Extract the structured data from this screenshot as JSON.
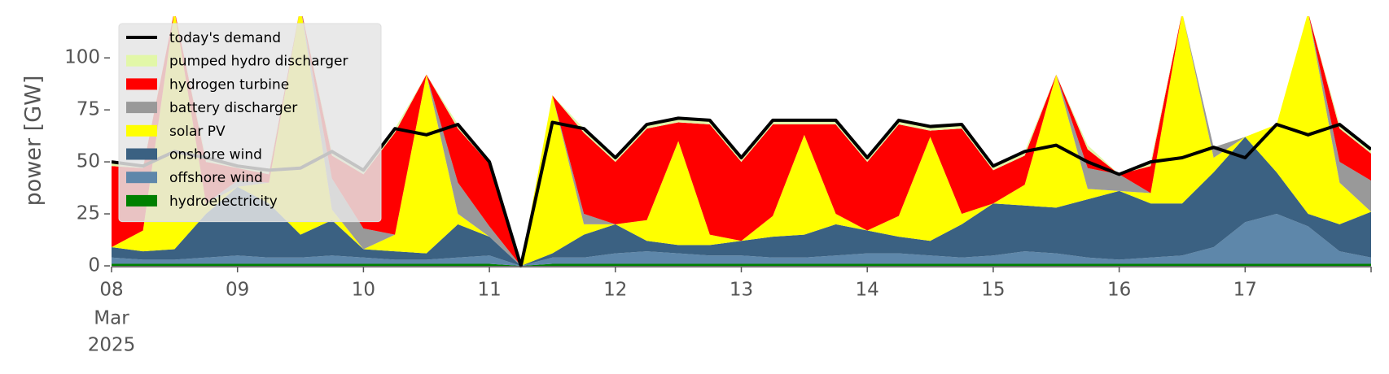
{
  "chart_data": {
    "type": "area",
    "stacked": true,
    "y_label": "power [GW]",
    "x": [
      "2025-03-08T00:00",
      "2025-03-08T06:00",
      "2025-03-08T12:00",
      "2025-03-08T18:00",
      "2025-03-09T00:00",
      "2025-03-09T06:00",
      "2025-03-09T12:00",
      "2025-03-09T18:00",
      "2025-03-10T00:00",
      "2025-03-10T06:00",
      "2025-03-10T12:00",
      "2025-03-10T18:00",
      "2025-03-11T00:00",
      "2025-03-11T06:00",
      "2025-03-11T12:00",
      "2025-03-11T18:00",
      "2025-03-12T00:00",
      "2025-03-12T06:00",
      "2025-03-12T12:00",
      "2025-03-12T18:00",
      "2025-03-13T00:00",
      "2025-03-13T06:00",
      "2025-03-13T12:00",
      "2025-03-13T18:00",
      "2025-03-14T00:00",
      "2025-03-14T06:00",
      "2025-03-14T12:00",
      "2025-03-14T18:00",
      "2025-03-15T00:00",
      "2025-03-15T06:00",
      "2025-03-15T12:00",
      "2025-03-15T18:00",
      "2025-03-16T00:00",
      "2025-03-16T06:00",
      "2025-03-16T12:00",
      "2025-03-16T18:00",
      "2025-03-17T00:00",
      "2025-03-17T06:00",
      "2025-03-17T12:00",
      "2025-03-17T18:00",
      "2025-03-18T00:00"
    ],
    "xlim": [
      "2025-03-08T00:00",
      "2025-03-18T00:00"
    ],
    "xticks": [
      {
        "value": "2025-03-08T00:00",
        "label": "08"
      },
      {
        "value": "2025-03-09T00:00",
        "label": "09"
      },
      {
        "value": "2025-03-10T00:00",
        "label": "10"
      },
      {
        "value": "2025-03-11T00:00",
        "label": "11"
      },
      {
        "value": "2025-03-12T00:00",
        "label": "12"
      },
      {
        "value": "2025-03-13T00:00",
        "label": "13"
      },
      {
        "value": "2025-03-14T00:00",
        "label": "14"
      },
      {
        "value": "2025-03-15T00:00",
        "label": "15"
      },
      {
        "value": "2025-03-16T00:00",
        "label": "16"
      },
      {
        "value": "2025-03-17T00:00",
        "label": "17"
      }
    ],
    "x_sublabels": [
      "Mar",
      "2025"
    ],
    "ylim": [
      0,
      120
    ],
    "yticks": [
      0,
      25,
      50,
      75,
      100
    ],
    "legend": "upper left",
    "series": [
      {
        "name": "hydroelectricity",
        "color": "#008000",
        "values": [
          1,
          1,
          1,
          1,
          1,
          1,
          1,
          1,
          1,
          1,
          1,
          1,
          1,
          0,
          1,
          1,
          1,
          1,
          1,
          1,
          1,
          1,
          1,
          1,
          1,
          1,
          1,
          1,
          1,
          1,
          1,
          1,
          1,
          1,
          1,
          1,
          1,
          1,
          1,
          1,
          1
        ]
      },
      {
        "name": "offshore wind",
        "color": "#5e87aa",
        "values": [
          3,
          2,
          2,
          3,
          4,
          3,
          3,
          4,
          3,
          2,
          2,
          3,
          4,
          0,
          3,
          3,
          5,
          6,
          5,
          4,
          4,
          3,
          3,
          4,
          5,
          5,
          4,
          3,
          4,
          6,
          5,
          3,
          2,
          3,
          4,
          8,
          20,
          24,
          18,
          6,
          3
        ]
      },
      {
        "name": "onshore wind",
        "color": "#3b6182",
        "values": [
          5,
          4,
          5,
          21,
          33,
          26,
          11,
          17,
          4,
          4,
          3,
          16,
          9,
          0,
          2,
          11,
          14,
          5,
          4,
          5,
          7,
          10,
          11,
          15,
          11,
          8,
          7,
          16,
          25,
          22,
          22,
          28,
          33,
          26,
          25,
          36,
          41,
          20,
          6,
          13,
          22
        ]
      },
      {
        "name": "solar PV",
        "color": "#ffff00",
        "values": [
          0,
          10,
          115,
          5,
          0,
          10,
          110,
          5,
          0,
          8,
          86,
          5,
          0,
          0,
          76,
          5,
          0,
          10,
          50,
          5,
          0,
          10,
          48,
          5,
          0,
          10,
          50,
          5,
          0,
          10,
          64,
          5,
          0,
          5,
          92,
          7,
          0,
          23,
          97,
          20,
          0
        ]
      },
      {
        "name": "battery discharger",
        "color": "#999999",
        "values": [
          0,
          0,
          0,
          0,
          3,
          0,
          0,
          15,
          10,
          0,
          0,
          15,
          5,
          0,
          0,
          5,
          0,
          0,
          0,
          0,
          0,
          0,
          0,
          0,
          0,
          0,
          0,
          0,
          0,
          0,
          0,
          10,
          8,
          0,
          0,
          5,
          0,
          0,
          0,
          10,
          15
        ]
      },
      {
        "name": "hydrogen turbine",
        "color": "#ff0000",
        "values": [
          39,
          30,
          0,
          20,
          6,
          4,
          0,
          11,
          26,
          49,
          0,
          26,
          30,
          0,
          0,
          39,
          30,
          44,
          9,
          53,
          38,
          44,
          5,
          43,
          33,
          44,
          3,
          41,
          16,
          14,
          0,
          9,
          0,
          13,
          0,
          0,
          0,
          0,
          0,
          16,
          13
        ]
      },
      {
        "name": "pumped hydro discharger",
        "color": "#e2f7a8",
        "values": [
          2,
          1,
          0,
          2,
          1,
          2,
          0,
          2,
          2,
          2,
          0,
          2,
          1,
          0,
          0,
          2,
          2,
          2,
          2,
          2,
          2,
          2,
          2,
          2,
          2,
          2,
          2,
          2,
          2,
          2,
          0,
          2,
          0,
          2,
          0,
          0,
          0,
          0,
          0,
          2,
          2
        ]
      }
    ],
    "lines": [
      {
        "name": "today's demand",
        "color": "#000000",
        "values": [
          50,
          48,
          55,
          52,
          48,
          46,
          47,
          55,
          46,
          66,
          63,
          68,
          50,
          0,
          69,
          66,
          52,
          68,
          71,
          70,
          52,
          70,
          70,
          70,
          52,
          70,
          67,
          68,
          48,
          55,
          58,
          50,
          44,
          50,
          52,
          57,
          52,
          68,
          63,
          68,
          56
        ]
      }
    ]
  }
}
